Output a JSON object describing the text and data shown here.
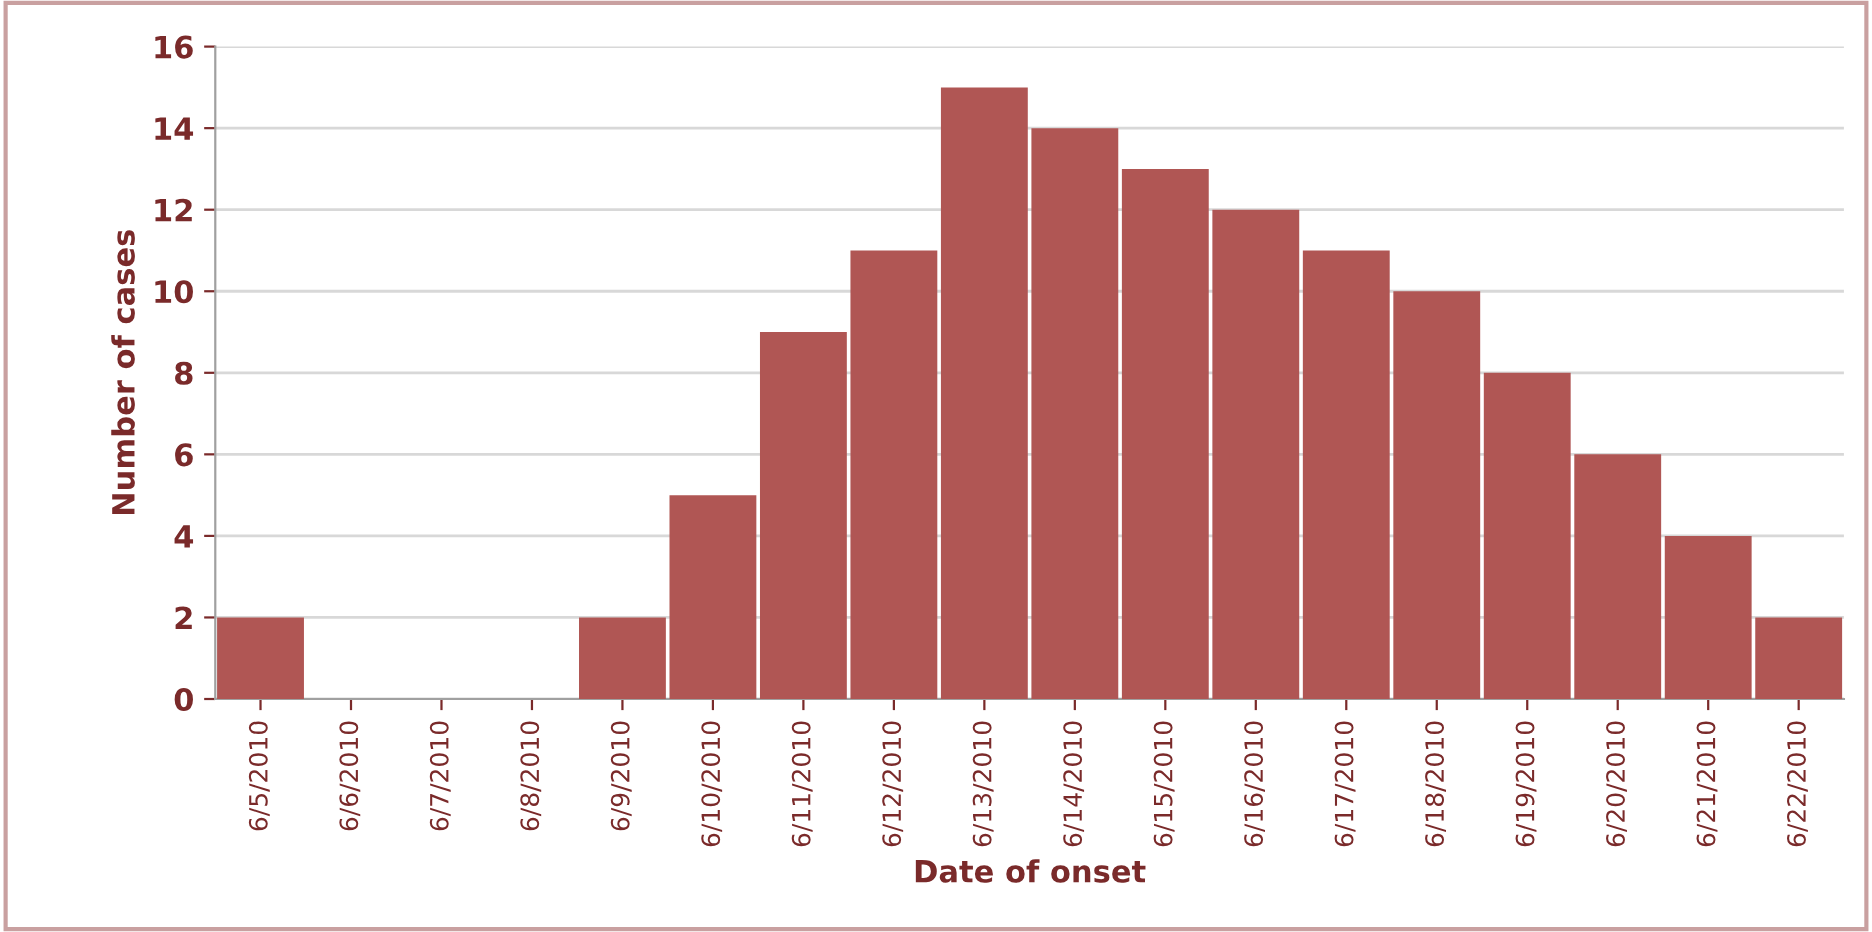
{
  "chart_data": {
    "type": "bar",
    "xlabel": "Date of onset",
    "ylabel": "Number of cases",
    "categories": [
      "6/5/2010",
      "6/6/2010",
      "6/7/2010",
      "6/8/2010",
      "6/9/2010",
      "6/10/2010",
      "6/11/2010",
      "6/12/2010",
      "6/13/2010",
      "6/14/2010",
      "6/15/2010",
      "6/16/2010",
      "6/17/2010",
      "6/18/2010",
      "6/19/2010",
      "6/20/2010",
      "6/21/2010",
      "6/22/2010"
    ],
    "values": [
      2,
      0,
      0,
      0,
      2,
      5,
      9,
      11,
      15,
      14,
      13,
      12,
      11,
      10,
      8,
      6,
      4,
      2
    ],
    "color": "#b05654",
    "ylim": [
      0,
      16
    ],
    "yticks": [
      0,
      2,
      4,
      6,
      8,
      10,
      12,
      14,
      16
    ],
    "grid": "y"
  }
}
